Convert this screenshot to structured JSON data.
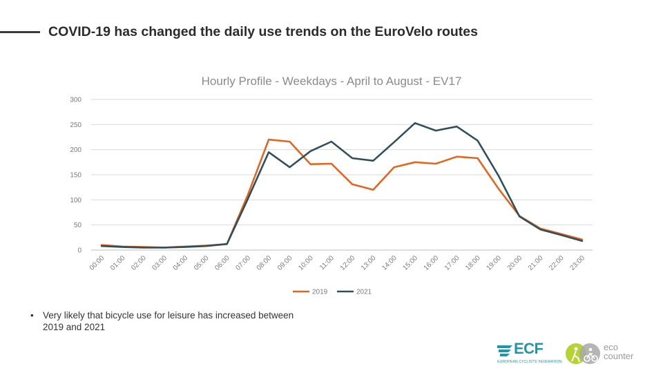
{
  "slide": {
    "title": "COVID-19 has changed the daily use trends on the EuroVelo routes",
    "bullet": "Very likely that bicycle use for leisure has increased between 2019 and 2021"
  },
  "logos": {
    "ecf_name": "ECF",
    "ecf_subtitle": "EUROPEAN CYCLISTS' FEDERATION",
    "eco_line1": "eco",
    "eco_line2": "counter"
  },
  "colors": {
    "series_2019": "#e5651e",
    "series_2021": "#2f4f5c",
    "gridline": "#d9d9d9",
    "brand_ecf": "#1f97a8",
    "brand_eco": "#b6d334"
  },
  "chart_data": {
    "type": "line",
    "title": "Hourly Profile - Weekdays - April to August - EV17",
    "xlabel": "",
    "ylabel": "",
    "ylim": [
      0,
      300
    ],
    "yticks": [
      0,
      50,
      100,
      150,
      200,
      250,
      300
    ],
    "grid": true,
    "legend_position": "bottom",
    "x": [
      "00:00",
      "01:00",
      "02:00",
      "03:00",
      "04:00",
      "05:00",
      "06:00",
      "07:00",
      "08:00",
      "09:00",
      "10:00",
      "11:00",
      "12:00",
      "13:00",
      "14:00",
      "15:00",
      "16:00",
      "17:00",
      "18:00",
      "19:00",
      "20:00",
      "21:00",
      "22:00",
      "23:00"
    ],
    "series": [
      {
        "name": "2019",
        "values": [
          10,
          7,
          6,
          5,
          7,
          9,
          12,
          110,
          220,
          216,
          171,
          172,
          131,
          120,
          165,
          175,
          172,
          186,
          183,
          122,
          68,
          43,
          32,
          21
        ]
      },
      {
        "name": "2021",
        "values": [
          8,
          6,
          5,
          5,
          6,
          8,
          12,
          102,
          195,
          165,
          197,
          216,
          183,
          178,
          215,
          253,
          238,
          246,
          218,
          148,
          67,
          41,
          30,
          18
        ]
      }
    ]
  }
}
